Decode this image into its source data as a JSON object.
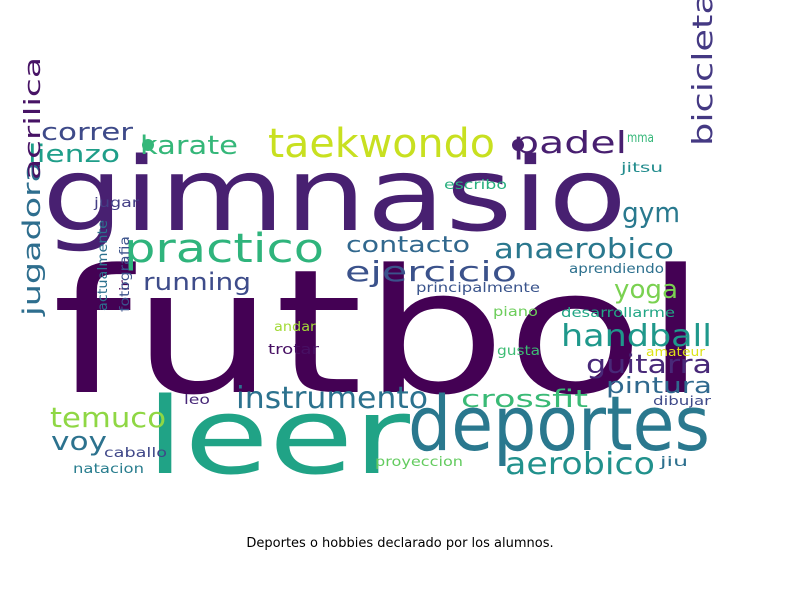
{
  "caption": "Deportes o hobbies declarado por los alumnos.",
  "words": [
    {
      "text": "futbol",
      "color": "#440154"
    },
    {
      "text": "gimnasio",
      "color": "#482071"
    },
    {
      "text": "leer",
      "color": "#20a386"
    },
    {
      "text": "deportes",
      "color": "#2a788e"
    },
    {
      "text": "practico",
      "color": "#2fb47c"
    },
    {
      "text": "taekwondo",
      "color": "#c8e020"
    },
    {
      "text": "ejercicio",
      "color": "#3b528b"
    },
    {
      "text": "instrumento",
      "color": "#2c728e"
    },
    {
      "text": "anaerobico",
      "color": "#2a788e"
    },
    {
      "text": "handball",
      "color": "#1f988b"
    },
    {
      "text": "aerobico",
      "color": "#21918c"
    },
    {
      "text": "bicicleta",
      "color": "#443983"
    },
    {
      "text": "crossfit",
      "color": "#3aba76"
    },
    {
      "text": "temuco",
      "color": "#8fd744"
    },
    {
      "text": "padel",
      "color": "#481f70"
    },
    {
      "text": "karate",
      "color": "#35b779"
    },
    {
      "text": "jugadora",
      "color": "#2e6e8e"
    },
    {
      "text": "correr",
      "color": "#3e4a89"
    },
    {
      "text": "lienzo",
      "color": "#1f9e89"
    },
    {
      "text": "running",
      "color": "#3e4c8a"
    },
    {
      "text": "contacto",
      "color": "#31688e"
    },
    {
      "text": "gym",
      "color": "#29798e"
    },
    {
      "text": "yoga",
      "color": "#7ad151"
    },
    {
      "text": "guitarra",
      "color": "#482878"
    },
    {
      "text": "pintura",
      "color": "#30698e"
    },
    {
      "text": "voy",
      "color": "#2c728e"
    },
    {
      "text": "acrilica",
      "color": "#471365"
    },
    {
      "text": "mma",
      "color": "#35b779"
    },
    {
      "text": "jitsu",
      "color": "#228c8d"
    },
    {
      "text": "escribo",
      "color": "#29af7f"
    },
    {
      "text": "jugar",
      "color": "#433e85"
    },
    {
      "text": "aprendiendo",
      "color": "#2d708e"
    },
    {
      "text": "principalmente",
      "color": "#3a548c"
    },
    {
      "text": "ir",
      "color": "#440154"
    },
    {
      "text": "fotografia",
      "color": "#3b528b"
    },
    {
      "text": "actualmente",
      "color": "#2c718e"
    },
    {
      "text": "desarrollarme",
      "color": "#21a685"
    },
    {
      "text": "piano",
      "color": "#6ccd5a"
    },
    {
      "text": "andar",
      "color": "#a2da37"
    },
    {
      "text": "gusta",
      "color": "#3dbc74"
    },
    {
      "text": "trotar",
      "color": "#471063"
    },
    {
      "text": "amateur",
      "color": "#dde318"
    },
    {
      "text": "leo",
      "color": "#482878"
    },
    {
      "text": "dibujar",
      "color": "#3e4989"
    },
    {
      "text": "caballo",
      "color": "#3f4788"
    },
    {
      "text": "natacion",
      "color": "#287d8e"
    },
    {
      "text": "proyeccion",
      "color": "#63cb5f"
    },
    {
      "text": "jiu",
      "color": "#2d708e"
    }
  ]
}
